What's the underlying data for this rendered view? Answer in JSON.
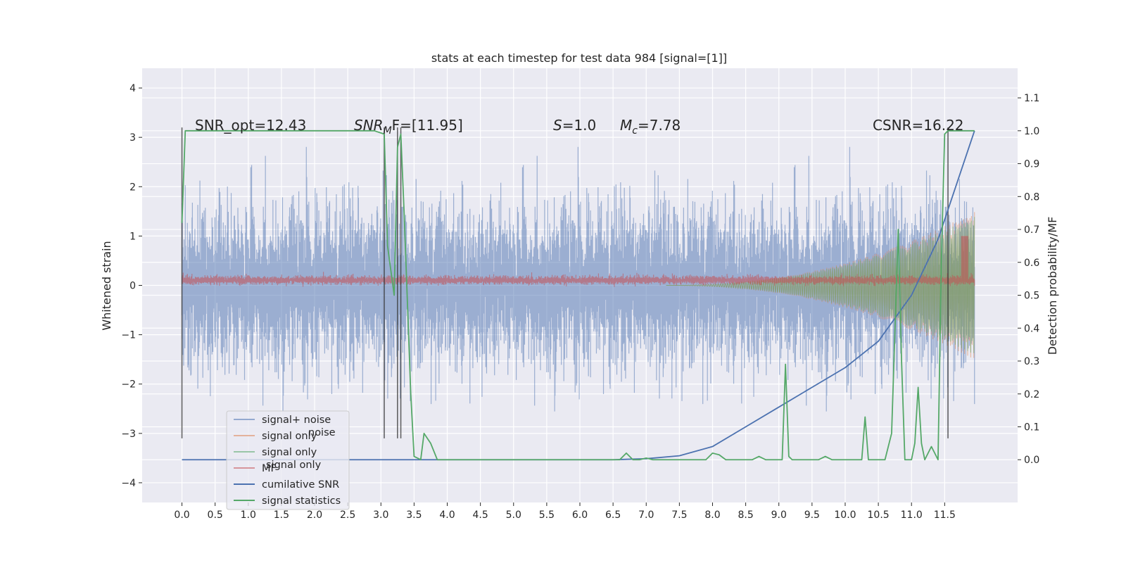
{
  "chart_data": {
    "type": "line",
    "title": "stats at each timestep for test data 984 [signal=[1]]",
    "ylabel": "Whitened strain",
    "ylabel_right": "Detection probability/MF",
    "xlim": [
      -0.6,
      12.6
    ],
    "ylim": [
      -4.4,
      4.4
    ],
    "ylim_right": [
      -0.13,
      1.19
    ],
    "xticks": [
      "0.0",
      "0.5",
      "1.0",
      "1.5",
      "2.0",
      "2.5",
      "3.0",
      "3.5",
      "4.0",
      "4.5",
      "5.0",
      "5.5",
      "6.0",
      "6.5",
      "7.0",
      "7.5",
      "8.0",
      "8.5",
      "9.0",
      "9.5",
      "10.0",
      "10.5",
      "11.0",
      "11.5"
    ],
    "yticks": [
      "4",
      "3",
      "2",
      "1",
      "0",
      "−1",
      "−2",
      "−3",
      "−4"
    ],
    "yticks_right": [
      "1.1",
      "1.0",
      "0.9",
      "0.8",
      "0.7",
      "0.6",
      "0.5",
      "0.4",
      "0.3",
      "0.2",
      "0.1",
      "0.0"
    ],
    "annotations": {
      "snr_opt": "SNR_opt=12.43",
      "snr_mf_a": "SNR",
      "snr_mf_sub": "M",
      "snr_mf_b": "F=[11.95]",
      "s_a": "S",
      "s_b": "=1.0",
      "mc_a": "M",
      "mc_sub": "c",
      "mc_b": "=7.78",
      "csnr": "CSNR=16.22"
    },
    "legend_loc": "lower left",
    "legend_ghost": [
      "noise",
      "signal only",
      "noise",
      "noise"
    ],
    "colors": {
      "plot_bg": "#eaeaf2",
      "grid": "#ffffff",
      "noise": "#4c72b0",
      "signal_orange": "#dd8452",
      "signal_green": "#55a868",
      "mf": "#c44e52",
      "csnr": "#4c72b0",
      "stats": "#55a868",
      "vlines": "#333333"
    },
    "series": [
      {
        "name": "signal+ noise",
        "kind": "noise",
        "y_center": 0.0,
        "y_span": 3.9
      },
      {
        "name": "signal only",
        "kind": "chirp",
        "x_start": 7.3,
        "x_end": 11.95,
        "amplitude_end": 1.5
      },
      {
        "name": "signal only",
        "kind": "chirp",
        "x_start": 7.3,
        "x_end": 11.95,
        "amplitude_end": 1.4
      },
      {
        "name": "MF",
        "kind": "mf",
        "y_center": 0.1,
        "y_span": 0.25,
        "peak_x": 11.8,
        "peak_y": 1.0
      },
      {
        "name": "cumilative SNR",
        "kind": "line_right",
        "x": [
          0.0,
          3.5,
          6.5,
          7.0,
          7.5,
          8.0,
          8.5,
          9.0,
          9.5,
          10.0,
          10.5,
          11.0,
          11.4,
          11.7,
          11.95
        ],
        "y": [
          0.0,
          0.0,
          0.0,
          0.003,
          0.012,
          0.04,
          0.1,
          0.16,
          0.22,
          0.28,
          0.36,
          0.5,
          0.67,
          0.85,
          1.0
        ]
      },
      {
        "name": "signal statistics",
        "kind": "line_right",
        "x": [
          0.0,
          0.05,
          0.1,
          1.5,
          2.5,
          2.9,
          3.05,
          3.1,
          3.2,
          3.25,
          3.3,
          3.35,
          3.45,
          3.5,
          3.6,
          3.65,
          3.75,
          3.85,
          4.0,
          6.6,
          6.7,
          6.8,
          6.9,
          7.0,
          7.1,
          7.9,
          8.0,
          8.1,
          8.2,
          8.6,
          8.7,
          8.8,
          9.05,
          9.1,
          9.15,
          9.2,
          9.6,
          9.7,
          9.8,
          10.25,
          10.3,
          10.35,
          10.4,
          10.6,
          10.7,
          10.8,
          10.85,
          10.9,
          10.95,
          11.0,
          11.05,
          11.1,
          11.15,
          11.2,
          11.3,
          11.35,
          11.4,
          11.45,
          11.5,
          11.55,
          11.6,
          11.7,
          11.95
        ],
        "y": [
          0.72,
          1.0,
          1.0,
          1.0,
          1.0,
          1.0,
          0.99,
          0.65,
          0.5,
          0.95,
          0.99,
          0.75,
          0.2,
          0.01,
          0.0,
          0.08,
          0.05,
          0.0,
          0.0,
          0.0,
          0.02,
          0.0,
          0.0,
          0.005,
          0.0,
          0.0,
          0.02,
          0.015,
          0.0,
          0.0,
          0.01,
          0.0,
          0.0,
          0.29,
          0.01,
          0.0,
          0.0,
          0.01,
          0.0,
          0.0,
          0.13,
          0.0,
          0.0,
          0.0,
          0.08,
          0.7,
          0.3,
          0.0,
          0.0,
          0.0,
          0.05,
          0.22,
          0.05,
          0.0,
          0.04,
          0.02,
          0.0,
          0.6,
          0.99,
          1.0,
          1.0,
          1.0,
          1.0
        ]
      }
    ],
    "vlines_x": [
      0.0,
      3.05,
      3.25,
      3.3,
      11.55
    ],
    "vline_top": 3.2,
    "vline_bottom": -3.1
  }
}
